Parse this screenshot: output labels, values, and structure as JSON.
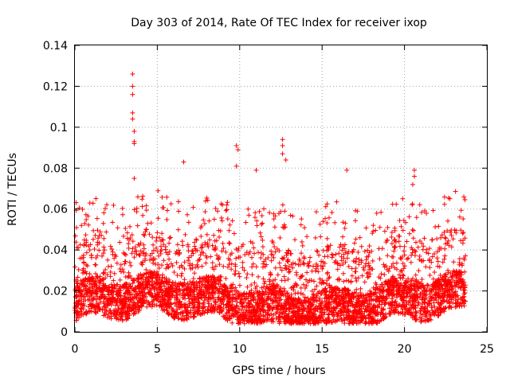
{
  "chart_data": {
    "type": "scatter",
    "title": "Day 303 of 2014, Rate Of TEC Index for receiver ixop",
    "xlabel": "GPS time / hours",
    "ylabel": "ROTI / TECUs",
    "xlim": [
      0,
      25
    ],
    "ylim": [
      0,
      0.14
    ],
    "xticks": [
      0,
      5,
      10,
      15,
      20,
      25
    ],
    "yticks": [
      0,
      0.02,
      0.04,
      0.06,
      0.08,
      0.1,
      0.12,
      0.14
    ],
    "xtick_labels": [
      "0",
      "5",
      "10",
      "15",
      "20",
      "25"
    ],
    "ytick_labels": [
      "0",
      "0.02",
      "0.04",
      "0.06",
      "0.08",
      "0.1",
      "0.12",
      "0.14"
    ],
    "grid": true,
    "marker": "+",
    "color": "#ff0000",
    "data_range_x": [
      0,
      23.7
    ],
    "series": [
      {
        "name": "ROTI",
        "notable_peaks": [
          {
            "x": 3.5,
            "y": 0.126
          },
          {
            "x": 3.5,
            "y": 0.12
          },
          {
            "x": 3.5,
            "y": 0.116
          },
          {
            "x": 3.5,
            "y": 0.107
          },
          {
            "x": 3.5,
            "y": 0.104
          },
          {
            "x": 3.6,
            "y": 0.098
          },
          {
            "x": 3.6,
            "y": 0.093
          },
          {
            "x": 3.6,
            "y": 0.092
          },
          {
            "x": 3.6,
            "y": 0.075
          },
          {
            "x": 9.8,
            "y": 0.091
          },
          {
            "x": 9.9,
            "y": 0.089
          },
          {
            "x": 12.6,
            "y": 0.094
          },
          {
            "x": 12.6,
            "y": 0.091
          },
          {
            "x": 12.6,
            "y": 0.087
          },
          {
            "x": 12.8,
            "y": 0.084
          },
          {
            "x": 6.6,
            "y": 0.083
          },
          {
            "x": 9.8,
            "y": 0.081
          },
          {
            "x": 11.0,
            "y": 0.079
          },
          {
            "x": 16.5,
            "y": 0.079
          },
          {
            "x": 20.6,
            "y": 0.079
          },
          {
            "x": 20.6,
            "y": 0.076
          },
          {
            "x": 20.5,
            "y": 0.072
          },
          {
            "x": 23.6,
            "y": 0.066
          },
          {
            "x": 0.4,
            "y": 0.052
          }
        ]
      }
    ]
  }
}
